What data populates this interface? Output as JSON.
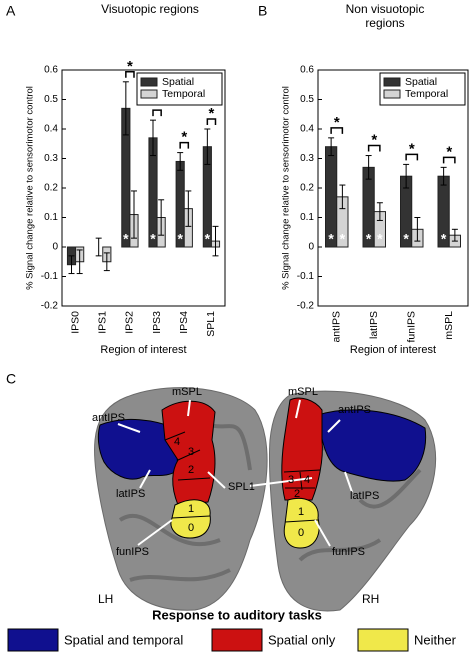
{
  "panels": [
    "A",
    "B",
    "C"
  ],
  "chart_data": [
    {
      "type": "bar",
      "title": "Visuotopic regions",
      "x_label": "Region of interest",
      "y_label": "% Signal change relative to sensorimotor control",
      "categories": [
        "IPS0",
        "IPS1",
        "IPS2",
        "IPS3",
        "IPS4",
        "SPL1"
      ],
      "series": [
        {
          "name": "Spatial",
          "color": "#333333",
          "values": [
            -0.06,
            0.0,
            0.47,
            0.37,
            0.29,
            0.34
          ],
          "errors": [
            0.03,
            0.03,
            0.09,
            0.06,
            0.03,
            0.06
          ],
          "significant_vs_zero": [
            false,
            false,
            true,
            true,
            true,
            true
          ]
        },
        {
          "name": "Temporal",
          "color": "#d4d4d4",
          "values": [
            -0.05,
            -0.05,
            0.11,
            0.1,
            0.13,
            0.02
          ],
          "errors": [
            0.04,
            0.03,
            0.08,
            0.06,
            0.06,
            0.05
          ],
          "significant_vs_zero": [
            false,
            false,
            false,
            false,
            false,
            false
          ]
        }
      ],
      "significance_marker": "*",
      "significant_difference": [
        false,
        false,
        true,
        true,
        true,
        true
      ],
      "ylim": [
        -0.2,
        0.6
      ],
      "yticks": [
        -0.2,
        -0.1,
        0,
        0.1,
        0.2,
        0.3,
        0.4,
        0.5,
        0.6
      ],
      "grid": false,
      "legend": "northeast"
    },
    {
      "type": "bar",
      "title": "Non visuotopic regions",
      "x_label": "Region of interest",
      "y_label": "% Signal change relative to sensorimotor control",
      "categories": [
        "antIPS",
        "latIPS",
        "funIPS",
        "mSPL"
      ],
      "series": [
        {
          "name": "Spatial",
          "color": "#333333",
          "values": [
            0.34,
            0.27,
            0.24,
            0.24
          ],
          "errors": [
            0.03,
            0.04,
            0.04,
            0.03
          ],
          "significant_vs_zero": [
            true,
            true,
            true,
            true
          ]
        },
        {
          "name": "Temporal",
          "color": "#d4d4d4",
          "values": [
            0.17,
            0.12,
            0.06,
            0.04
          ],
          "errors": [
            0.04,
            0.03,
            0.04,
            0.02
          ],
          "significant_vs_zero": [
            true,
            true,
            false,
            false
          ]
        }
      ],
      "significance_marker": "*",
      "significant_difference": [
        true,
        true,
        true,
        true
      ],
      "ylim": [
        -0.2,
        0.6
      ],
      "yticks": [
        -0.2,
        -0.1,
        0,
        0.1,
        0.2,
        0.3,
        0.4,
        0.5,
        0.6
      ],
      "grid": false,
      "legend": "northeast"
    }
  ],
  "panel_c": {
    "title": "Response to auditory tasks",
    "hemispheres": [
      "LH",
      "RH"
    ],
    "region_labels": [
      "antIPS",
      "mSPL",
      "SPL1",
      "latIPS",
      "funIPS"
    ],
    "rh_region_labels": [
      "mSPL",
      "antIPS",
      "latIPS",
      "funIPS"
    ],
    "lh_numbers": [
      "4",
      "3",
      "2",
      "1",
      "0"
    ],
    "rh_numbers": [
      "3",
      "4",
      "2",
      "1",
      "0"
    ],
    "legend": [
      "Spatial and temporal",
      "Spatial only",
      "Neither"
    ]
  }
}
